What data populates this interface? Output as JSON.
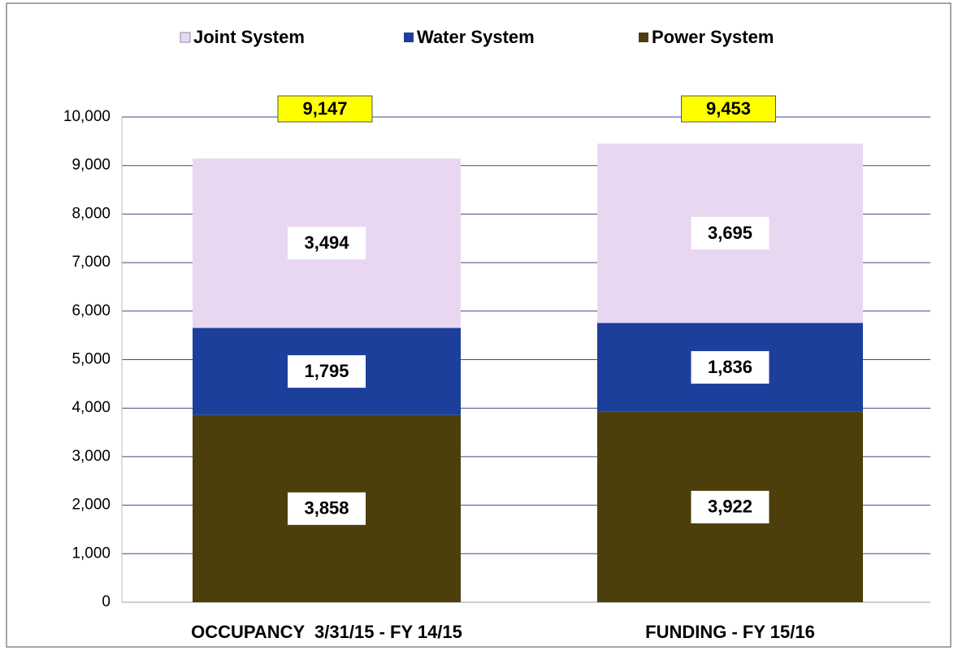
{
  "chart_data": {
    "type": "stacked_bar",
    "categories": [
      "OCCUPANCY  3/31/15 - FY 14/15",
      "FUNDING - FY 15/16"
    ],
    "series": [
      {
        "name": "Joint System",
        "color": "#e9d7f2",
        "values": [
          3494,
          3695
        ],
        "value_labels": [
          "3,494",
          "3,695"
        ]
      },
      {
        "name": "Water System",
        "color": "#1d3f9c",
        "values": [
          1795,
          1836
        ],
        "value_labels": [
          "1,795",
          "1,836"
        ]
      },
      {
        "name": "Power System",
        "color": "#4c3f0c",
        "values": [
          3858,
          3922
        ],
        "value_labels": [
          "3,858",
          "3,922"
        ]
      }
    ],
    "totals": [
      9147,
      9453
    ],
    "total_labels": [
      "9,147",
      "9,453"
    ],
    "total_label_color": "#ffff00",
    "ylim": [
      0,
      10000
    ],
    "yticks": [
      0,
      {
        "value": 1000,
        "label": "1,000"
      },
      {
        "value": 2000,
        "label": "2,000"
      },
      {
        "value": 3000,
        "label": "3,000"
      },
      {
        "value": 4000,
        "label": "4,000"
      },
      {
        "value": 5000,
        "label": "5,000"
      },
      {
        "value": 6000,
        "label": "6,000"
      },
      {
        "value": 7000,
        "label": "7,000"
      },
      {
        "value": 8000,
        "label": "8,000"
      },
      {
        "value": 9000,
        "label": "9,000"
      },
      {
        "value": 10000,
        "label": "10,000"
      }
    ],
    "grid": true,
    "legend": "top"
  }
}
